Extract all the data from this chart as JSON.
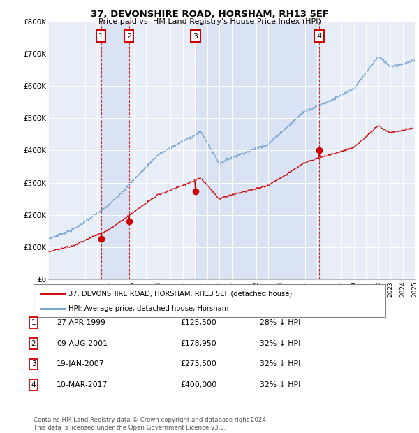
{
  "title": "37, DEVONSHIRE ROAD, HORSHAM, RH13 5EF",
  "subtitle": "Price paid vs. HM Land Registry's House Price Index (HPI)",
  "background_color": "#ffffff",
  "plot_bg_color": "#e8eef8",
  "ylim": [
    0,
    800000
  ],
  "yticks": [
    0,
    100000,
    200000,
    300000,
    400000,
    500000,
    600000,
    700000,
    800000
  ],
  "purchases": [
    {
      "date_num": 1999.32,
      "price": 125500,
      "label": "1"
    },
    {
      "date_num": 2001.6,
      "price": 178950,
      "label": "2"
    },
    {
      "date_num": 2007.05,
      "price": 273500,
      "label": "3"
    },
    {
      "date_num": 2017.19,
      "price": 400000,
      "label": "4"
    }
  ],
  "legend_line1": "37, DEVONSHIRE ROAD, HORSHAM, RH13 5EF (detached house)",
  "legend_line2": "HPI: Average price, detached house, Horsham",
  "table_rows": [
    {
      "num": "1",
      "date": "27-APR-1999",
      "price": "£125,500",
      "hpi": "28% ↓ HPI"
    },
    {
      "num": "2",
      "date": "09-AUG-2001",
      "price": "£178,950",
      "hpi": "32% ↓ HPI"
    },
    {
      "num": "3",
      "date": "19-JAN-2007",
      "price": "£273,500",
      "hpi": "32% ↓ HPI"
    },
    {
      "num": "4",
      "date": "10-MAR-2017",
      "price": "£400,000",
      "hpi": "32% ↓ HPI"
    }
  ],
  "footer": "Contains HM Land Registry data © Crown copyright and database right 2024.\nThis data is licensed under the Open Government Licence v3.0.",
  "hpi_color": "#6699cc",
  "price_color": "#cc0000",
  "vline_color": "#cc0000",
  "box_color": "#cc0000",
  "shade_color": "#d0ddf0"
}
